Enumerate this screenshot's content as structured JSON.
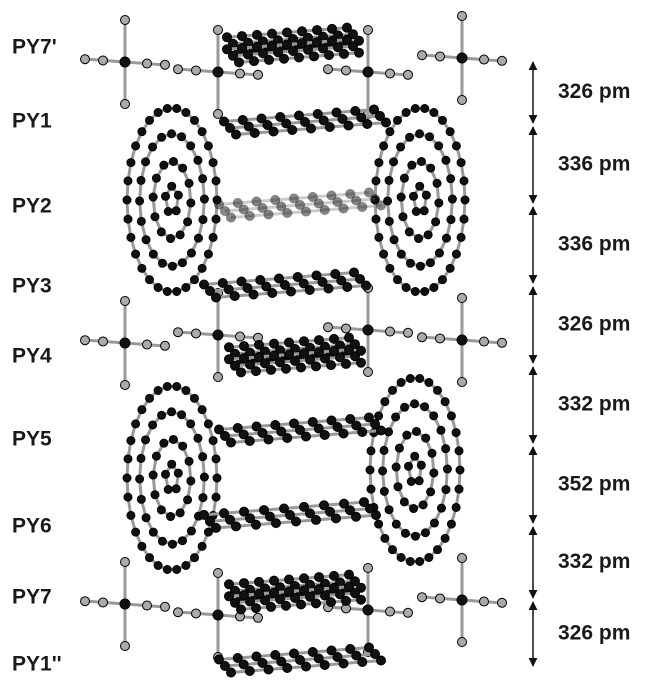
{
  "labels": [
    "PY7'",
    "PY1",
    "PY2",
    "PY3",
    "PY4",
    "PY5",
    "PY6",
    "PY7",
    "PY1''"
  ],
  "distances": [
    "326 pm",
    "336 pm",
    "336 pm",
    "326 pm",
    "332 pm",
    "352 pm",
    "332 pm",
    "326 pm"
  ]
}
